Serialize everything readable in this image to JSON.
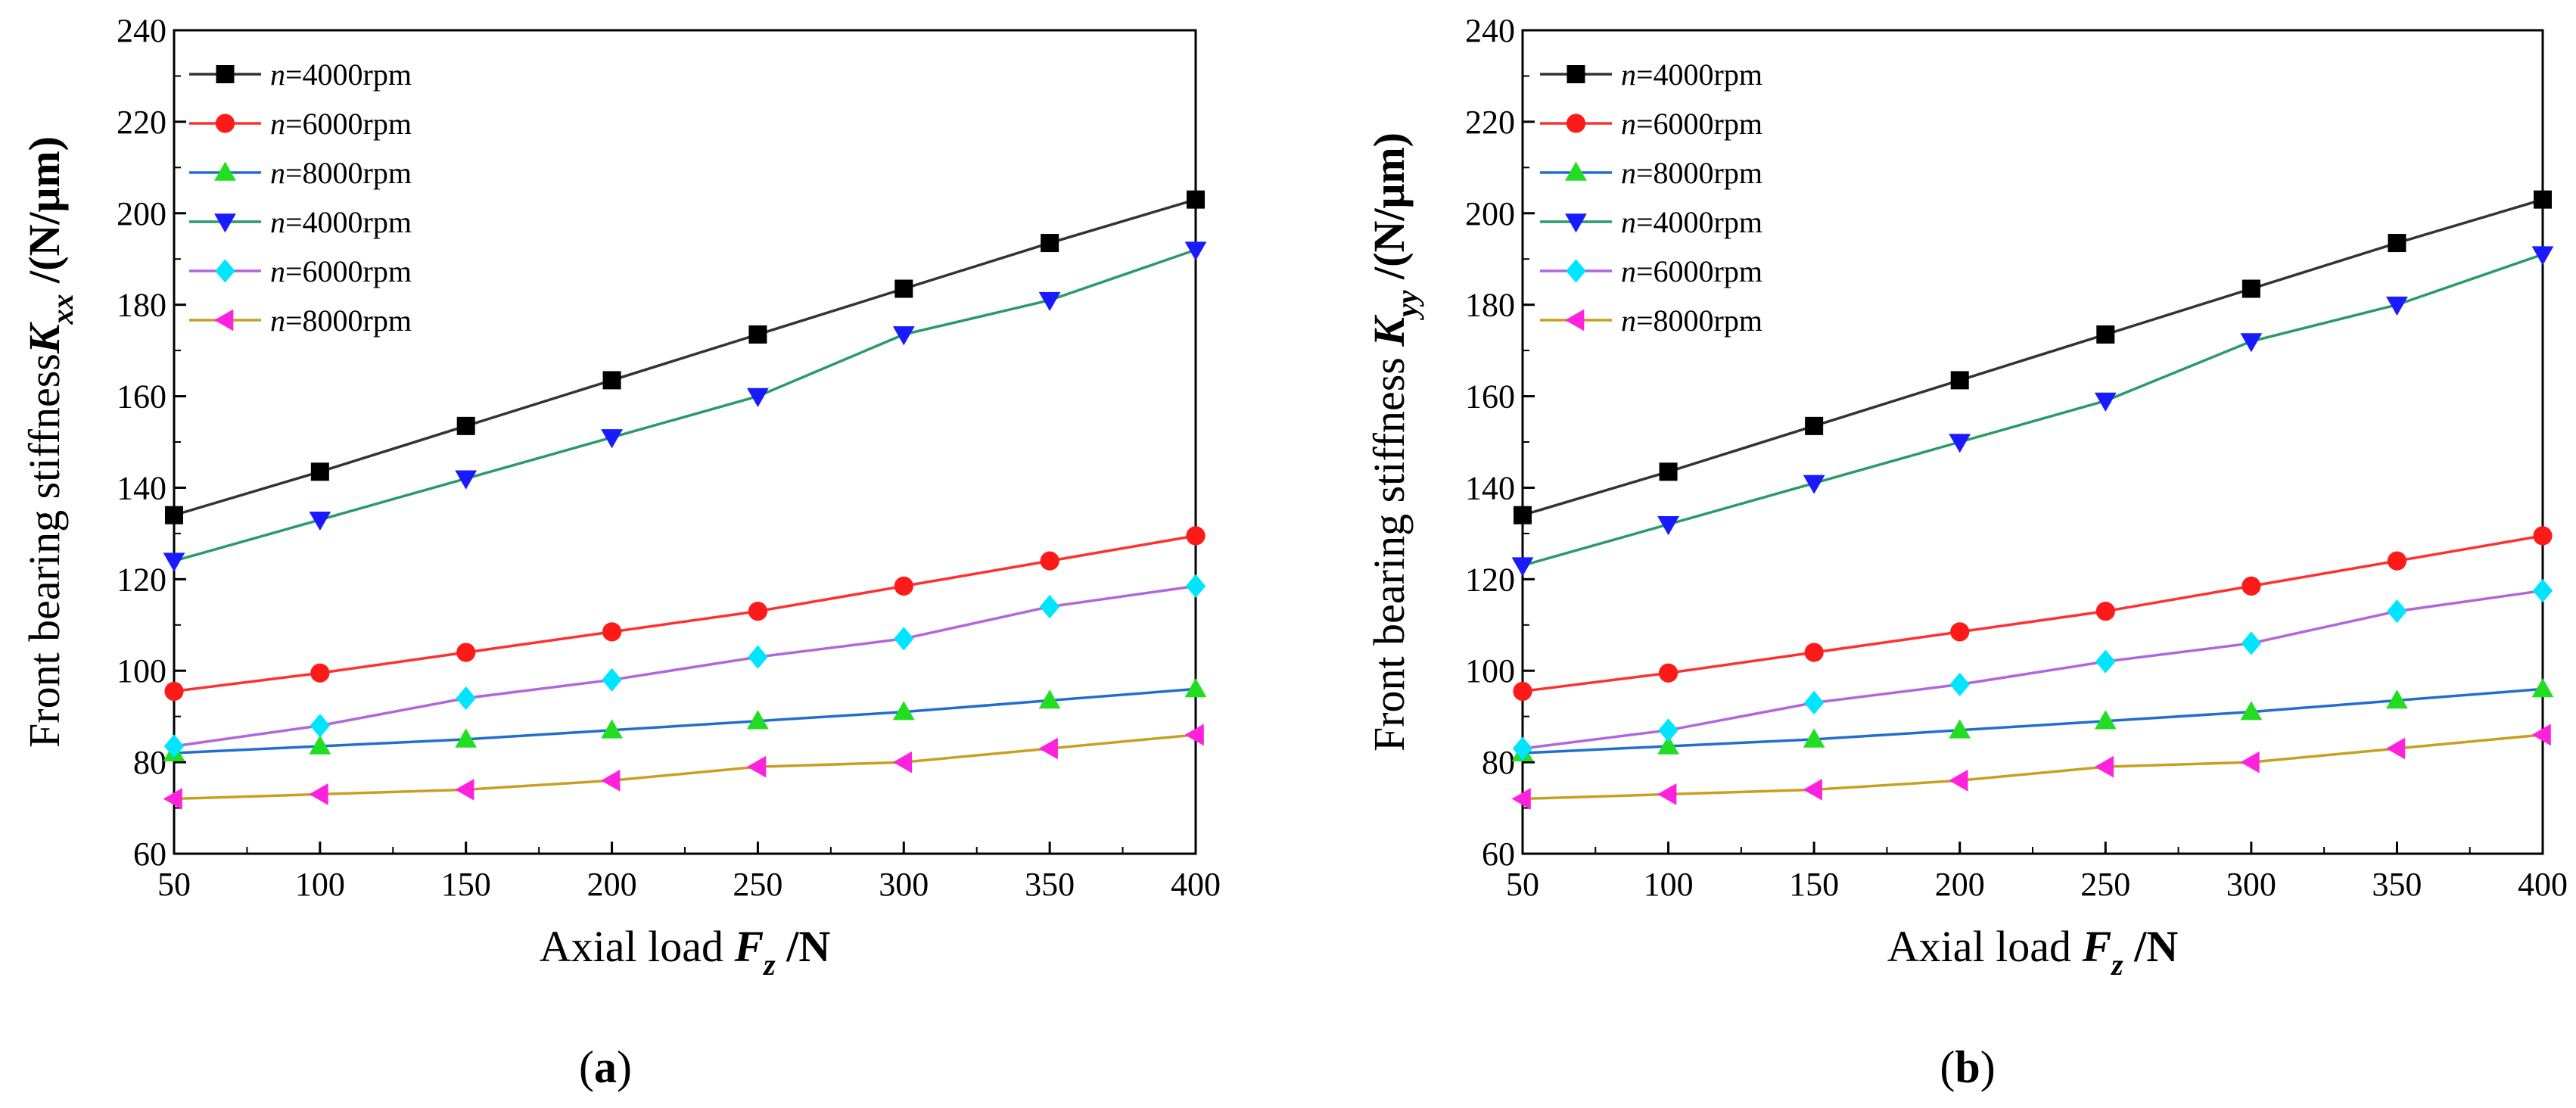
{
  "chart_data": [
    {
      "type": "line",
      "panel_label": "(a)",
      "xlabel": "Axial load F_z /N",
      "xlabel_parts": {
        "prefix": "Axial load ",
        "symbol": "F",
        "subscript": "z",
        "suffix": " /N"
      },
      "ylabel": "Front bearing stiffness K_xx /(N/μm)",
      "ylabel_parts": {
        "prefix": "Front bearing stiffness",
        "symbol": "K",
        "subscript": "xx",
        "suffix": " /(N/μm)"
      },
      "xlim": [
        50,
        400
      ],
      "ylim": [
        60,
        240
      ],
      "x_ticks": [
        50,
        100,
        150,
        200,
        250,
        300,
        350,
        400
      ],
      "y_ticks": [
        60,
        80,
        100,
        120,
        140,
        160,
        180,
        200,
        220,
        240
      ],
      "grid": false,
      "legend_position": "top-left",
      "x": [
        50,
        100,
        150,
        200,
        250,
        300,
        350,
        400
      ],
      "series": [
        {
          "name": "n=4000rpm",
          "color": "#000000",
          "line_color": "#333333",
          "marker": "square",
          "values": [
            134,
            143.5,
            153.5,
            163.5,
            173.5,
            183.5,
            193.5,
            203
          ]
        },
        {
          "name": "n=6000rpm",
          "color": "#ff1a1a",
          "line_color": "#ff3030",
          "marker": "circle",
          "values": [
            95.5,
            99.5,
            104,
            108.5,
            113,
            118.5,
            124,
            129.5
          ]
        },
        {
          "name": "n=8000rpm",
          "color": "#22dd22",
          "line_color": "#1f6fd0",
          "marker": "triangle-up",
          "values": [
            82,
            83.5,
            85,
            87,
            89,
            91,
            93.5,
            96
          ]
        },
        {
          "name": "n=4000rpm",
          "color": "#1a1aff",
          "line_color": "#2a9a6a",
          "marker": "triangle-down",
          "values": [
            124,
            133,
            142,
            151,
            160,
            173.5,
            181,
            192
          ]
        },
        {
          "name": "n=6000rpm",
          "color": "#00e5ff",
          "line_color": "#b266d9",
          "marker": "diamond",
          "values": [
            83.5,
            88,
            94,
            98,
            103,
            107,
            114,
            118.5
          ]
        },
        {
          "name": "n=8000rpm",
          "color": "#ff22dd",
          "line_color": "#c8a020",
          "marker": "triangle-left",
          "values": [
            72,
            73,
            74,
            76,
            79,
            80,
            83,
            86
          ]
        }
      ]
    },
    {
      "type": "line",
      "panel_label": "(b)",
      "xlabel": "Axial load F_z /N",
      "xlabel_parts": {
        "prefix": "Axial load ",
        "symbol": "F",
        "subscript": "z",
        "suffix": " /N"
      },
      "ylabel": "Front bearing stiffness K_yy /(N/μm)",
      "ylabel_parts": {
        "prefix": "Front bearing stiffness ",
        "symbol": "K",
        "subscript": "yy",
        "suffix": " /(N/μm)"
      },
      "xlim": [
        50,
        400
      ],
      "ylim": [
        60,
        240
      ],
      "x_ticks": [
        50,
        100,
        150,
        200,
        250,
        300,
        350,
        400
      ],
      "y_ticks": [
        60,
        80,
        100,
        120,
        140,
        160,
        180,
        200,
        220,
        240
      ],
      "grid": false,
      "legend_position": "top-left",
      "x": [
        50,
        100,
        150,
        200,
        250,
        300,
        350,
        400
      ],
      "series": [
        {
          "name": "n=4000rpm",
          "color": "#000000",
          "line_color": "#333333",
          "marker": "square",
          "values": [
            134,
            143.5,
            153.5,
            163.5,
            173.5,
            183.5,
            193.5,
            203
          ]
        },
        {
          "name": "n=6000rpm",
          "color": "#ff1a1a",
          "line_color": "#ff3030",
          "marker": "circle",
          "values": [
            95.5,
            99.5,
            104,
            108.5,
            113,
            118.5,
            124,
            129.5
          ]
        },
        {
          "name": "n=8000rpm",
          "color": "#22dd22",
          "line_color": "#1f6fd0",
          "marker": "triangle-up",
          "values": [
            82,
            83.5,
            85,
            87,
            89,
            91,
            93.5,
            96
          ]
        },
        {
          "name": "n=4000rpm",
          "color": "#1a1aff",
          "line_color": "#2a9a6a",
          "marker": "triangle-down",
          "values": [
            123,
            132,
            141,
            150,
            159,
            172,
            180,
            191
          ]
        },
        {
          "name": "n=6000rpm",
          "color": "#00e5ff",
          "line_color": "#b266d9",
          "marker": "diamond",
          "values": [
            83,
            87,
            93,
            97,
            102,
            106,
            113,
            117.5
          ]
        },
        {
          "name": "n=8000rpm",
          "color": "#ff22dd",
          "line_color": "#c8a020",
          "marker": "triangle-left",
          "values": [
            72,
            73,
            74,
            76,
            79,
            80,
            83,
            86
          ]
        }
      ]
    }
  ]
}
